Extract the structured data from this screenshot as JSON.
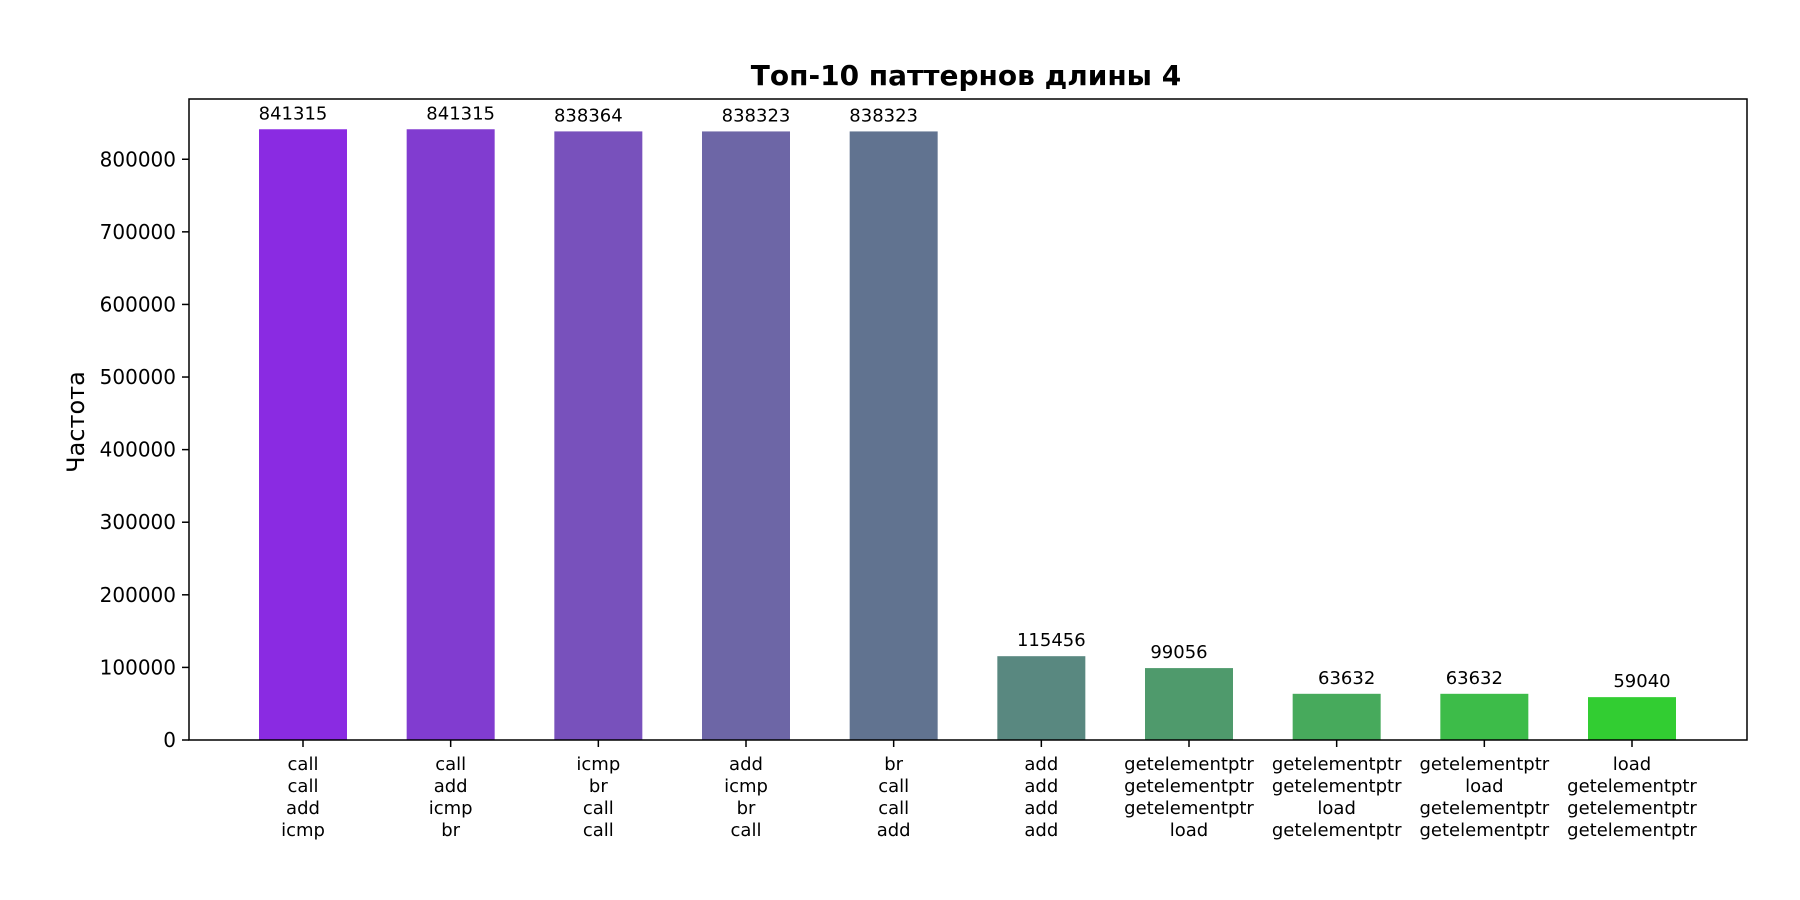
{
  "chart_data": {
    "type": "bar",
    "title": "Топ-10 паттернов длины 4",
    "xlabel": "",
    "ylabel": "Частота",
    "ylim": [
      0,
      883000
    ],
    "yticks": [
      0,
      100000,
      200000,
      300000,
      400000,
      500000,
      600000,
      700000,
      800000
    ],
    "grid": false,
    "categories": [
      [
        "call",
        "call",
        "add",
        "icmp"
      ],
      [
        "call",
        "add",
        "icmp",
        "br"
      ],
      [
        "icmp",
        "br",
        "call",
        "call"
      ],
      [
        "add",
        "icmp",
        "br",
        "call"
      ],
      [
        "br",
        "call",
        "call",
        "add"
      ],
      [
        "add",
        "add",
        "add",
        "add"
      ],
      [
        "getelementptr",
        "getelementptr",
        "getelementptr",
        "load"
      ],
      [
        "getelementptr",
        "getelementptr",
        "load",
        "getelementptr"
      ],
      [
        "getelementptr",
        "load",
        "getelementptr",
        "getelementptr"
      ],
      [
        "load",
        "getelementptr",
        "getelementptr",
        "getelementptr"
      ]
    ],
    "values": [
      841315,
      841315,
      838364,
      838323,
      838323,
      115456,
      99056,
      63632,
      63632,
      59040
    ],
    "data_labels": [
      "841315",
      "841315",
      "838364",
      "838323",
      "838323",
      "115456",
      "99056",
      "63632",
      "63632",
      "59040"
    ],
    "colors": [
      "#8a2be2",
      "#813cd0",
      "#7851bc",
      "#6d66a6",
      "#617390",
      "#598880",
      "#4f9a6c",
      "#47aa5c",
      "#3dbc49",
      "#32cd32"
    ]
  }
}
